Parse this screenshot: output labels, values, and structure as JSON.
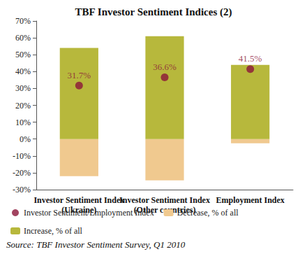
{
  "chart_data": {
    "type": "bar",
    "title": "TBF Investor Sentiment Indices (2)",
    "categories": [
      "Investor Sentiment Index\n(Ukraine)",
      "Investor Sentiment Index\n(Other countries)",
      "Employment Index"
    ],
    "series": [
      {
        "name": "Investor Sentiment/Employment Index",
        "type": "scatter",
        "marker": "circle",
        "color": "#8b1538",
        "values": [
          31.7,
          36.6,
          41.5
        ],
        "value_labels": [
          "31.7%",
          "36.6%",
          "41.5%"
        ],
        "data_labels": true
      },
      {
        "name": "Decrease, % of all",
        "type": "bar",
        "color": "#f0c98f",
        "values": [
          -22,
          -24.5,
          -2.5
        ]
      },
      {
        "name": "Increase, % of all",
        "type": "bar",
        "color": "#b7b83c",
        "values": [
          54,
          61,
          44
        ]
      }
    ],
    "stacked": true,
    "ylim": [
      -30,
      70
    ],
    "yticks": [
      {
        "value": -30,
        "label": "-30%"
      },
      {
        "value": -20,
        "label": "-20%"
      },
      {
        "value": -10,
        "label": "-10%"
      },
      {
        "value": 0,
        "label": "0%"
      },
      {
        "value": 10,
        "label": "10%"
      },
      {
        "value": 20,
        "label": "20%"
      },
      {
        "value": 30,
        "label": "30%"
      },
      {
        "value": 40,
        "label": "40%"
      },
      {
        "value": 50,
        "label": "50%"
      },
      {
        "value": 60,
        "label": "60%"
      },
      {
        "value": 70,
        "label": "70%"
      }
    ],
    "grid": false,
    "legend": "bottom",
    "annotations": [
      "Source: TBF Investor Sentiment Survey, Q1 2010"
    ]
  }
}
